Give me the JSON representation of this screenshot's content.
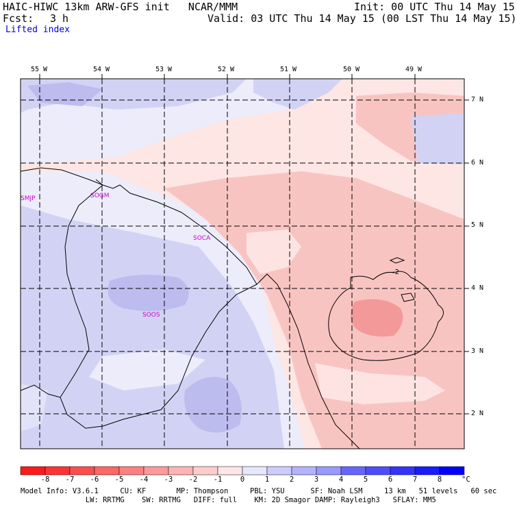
{
  "header": {
    "title_left": "HAIC-HIWC 13km ARW-GFS init   NCAR/MMM",
    "init": "Init: 00 UTC Thu 14 May 15",
    "fcst_label": "Fcst:",
    "fcst_value": "3 h",
    "valid": "Valid: 03 UTC Thu 14 May 15 (00 LST Thu 14 May 15)",
    "field": "Lifted index"
  },
  "map": {
    "lon_labels": [
      "55 W",
      "54 W",
      "53 W",
      "52 W",
      "51 W",
      "50 W",
      "49 W"
    ],
    "lat_labels": [
      "7 N",
      "6 N",
      "5 N",
      "4 N",
      "3 N",
      "2 N"
    ],
    "stations": [
      "SMJP",
      "SOGM",
      "SOCA",
      "SOOS"
    ],
    "contour_label": "-2",
    "colors": {
      "li_neg3": "#f4999a",
      "li_neg2": "#f8c4c2",
      "li_neg1": "#fde4e2",
      "li_pos1": "#ececfb",
      "li_pos2": "#d2d3f4",
      "li_pos3": "#bcbcef"
    }
  },
  "colorbar": {
    "labels": [
      "-8",
      "-7",
      "-6",
      "-5",
      "-4",
      "-3",
      "-2",
      "-1",
      "0",
      "1",
      "2",
      "3",
      "4",
      "5",
      "6",
      "7",
      "8"
    ],
    "unit": "°C",
    "colors": [
      "#ff1a1a",
      "#ff3333",
      "#ff4d4d",
      "#ff6666",
      "#ff8080",
      "#ff9999",
      "#ffb3b3",
      "#ffcccc",
      "#ffe6e6",
      "#e6e6ff",
      "#ccccff",
      "#b3b3ff",
      "#9999ff",
      "#6666ff",
      "#4d4dff",
      "#3333ff",
      "#1a1aff",
      "#0000ff"
    ]
  },
  "model_info": {
    "line1": "Model Info: V3.6.1     CU: KF       MP: Thompson     PBL: YSU      SF: Noah LSM     13 km   51 levels   60 sec",
    "line2": "               LW: RRTMG    SW: RRTMG   DIFF: full    KM: 2D Smagor DAMP: Rayleigh3   SFLAY: MM5"
  }
}
